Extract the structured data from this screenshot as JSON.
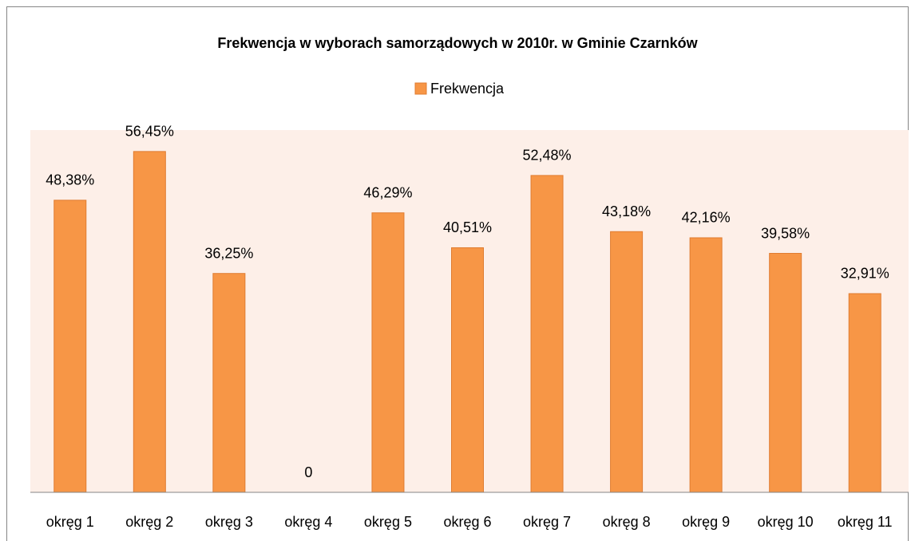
{
  "chart_data": {
    "type": "bar",
    "title": "Frekwencja w wyborach samorządowych w 2010r. w Gminie Czarnków",
    "categories": [
      "okręg 1",
      "okręg 2",
      "okręg 3",
      "okręg 4",
      "okręg 5",
      "okręg 6",
      "okręg 7",
      "okręg 8",
      "okręg 9",
      "okręg 10",
      "okręg 11"
    ],
    "series": [
      {
        "name": "Frekwencja",
        "color": "#f79646",
        "values": [
          48.38,
          56.45,
          36.25,
          0,
          46.29,
          40.51,
          52.48,
          43.18,
          42.16,
          39.58,
          32.91
        ],
        "value_labels": [
          "48,38%",
          "56,45%",
          "36,25%",
          "0",
          "46,29%",
          "40,51%",
          "52,48%",
          "43,18%",
          "42,16%",
          "39,58%",
          "32,91%"
        ]
      }
    ],
    "ylim": [
      0,
      60
    ]
  }
}
